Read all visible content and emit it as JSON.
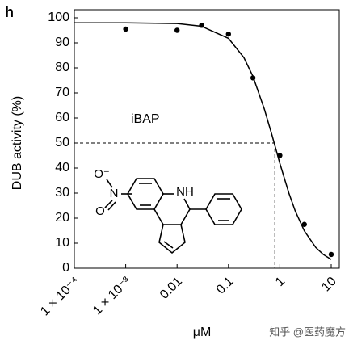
{
  "chart_data": {
    "type": "scatter",
    "panel": "h",
    "annotation": "iBAP",
    "xlabel": "μM",
    "ylabel": "DUB activity (%)",
    "log_x": true,
    "color": "#000000",
    "xlim": [
      0.0001,
      10
    ],
    "ylim": [
      0,
      100
    ],
    "xticks": [
      {
        "value": 0.0001,
        "label": "1 × 10⁻⁴"
      },
      {
        "value": 0.001,
        "label": "1 × 10⁻³"
      },
      0.01,
      0.1,
      1,
      10
    ],
    "yticks": [
      0,
      10,
      20,
      30,
      40,
      50,
      60,
      70,
      80,
      90,
      100
    ],
    "points": {
      "x": [
        0.001,
        0.01,
        0.03,
        0.1,
        0.3,
        1,
        3,
        10
      ],
      "values": [
        95.5,
        95,
        97,
        93.5,
        76,
        45,
        17.5,
        5.5
      ]
    },
    "fit": {
      "x": [
        0.0001,
        0.001,
        0.01,
        0.03,
        0.1,
        0.2,
        0.3,
        0.5,
        0.7,
        1,
        1.5,
        2,
        3,
        5,
        7,
        10
      ],
      "values": [
        98,
        98,
        97.7,
        96.6,
        91.8,
        84.1,
        76.6,
        63.5,
        53.3,
        41.9,
        30,
        22.8,
        14.9,
        8.3,
        5.5,
        3.5
      ]
    },
    "reference": {
      "x": 0.8,
      "y": 50
    }
  },
  "structure": {
    "atoms": [
      "O⁻",
      "N",
      "O",
      "NH"
    ]
  },
  "watermark": "知乎 @医药魔方"
}
